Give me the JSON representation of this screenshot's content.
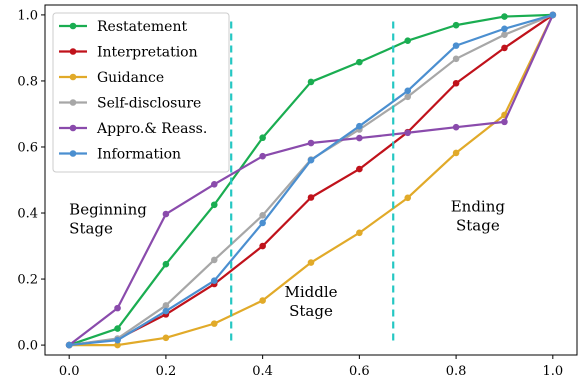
{
  "chart_data": {
    "type": "line",
    "x": [
      0.0,
      0.1,
      0.2,
      0.3,
      0.4,
      0.5,
      0.6,
      0.7,
      0.8,
      0.9,
      1.0
    ],
    "xlim": [
      -0.05,
      1.05
    ],
    "ylim": [
      -0.03,
      1.03
    ],
    "xticks": [
      0.0,
      0.2,
      0.4,
      0.6,
      0.8,
      1.0
    ],
    "yticks": [
      0.0,
      0.2,
      0.4,
      0.6,
      0.8,
      1.0
    ],
    "xtick_labels": [
      "0.0",
      "0.2",
      "0.4",
      "0.6",
      "0.8",
      "1.0"
    ],
    "ytick_labels": [
      "0.0",
      "0.2",
      "0.4",
      "0.6",
      "0.8",
      "1.0"
    ],
    "grid": false,
    "legend_position": "upper-left",
    "series": [
      {
        "name": "Restatement",
        "color": "#1aad51",
        "values": [
          0.0,
          0.05,
          0.245,
          0.425,
          0.628,
          0.797,
          0.857,
          0.922,
          0.969,
          0.995,
          1.0
        ]
      },
      {
        "name": "Interpretation",
        "color": "#c0121b",
        "values": [
          0.0,
          0.018,
          0.093,
          0.185,
          0.3,
          0.447,
          0.533,
          0.645,
          0.793,
          0.9,
          1.0
        ]
      },
      {
        "name": "Guidance",
        "color": "#e1aa29",
        "values": [
          0.0,
          0.0,
          0.022,
          0.065,
          0.135,
          0.25,
          0.34,
          0.446,
          0.582,
          0.697,
          1.0
        ]
      },
      {
        "name": "Self-disclosure",
        "color": "#a7a7a7",
        "values": [
          0.0,
          0.02,
          0.12,
          0.258,
          0.393,
          0.562,
          0.653,
          0.752,
          0.867,
          0.94,
          1.0
        ]
      },
      {
        "name": "Appro.& Reass.",
        "color": "#8a4bac",
        "values": [
          0.0,
          0.112,
          0.397,
          0.487,
          0.572,
          0.612,
          0.627,
          0.643,
          0.66,
          0.676,
          1.0
        ]
      },
      {
        "name": "Information",
        "color": "#4b8fd0",
        "values": [
          0.0,
          0.015,
          0.103,
          0.195,
          0.37,
          0.56,
          0.663,
          0.77,
          0.907,
          0.958,
          1.0
        ]
      }
    ],
    "vlines": [
      {
        "x": 0.335,
        "color": "#25c7c3"
      },
      {
        "x": 0.67,
        "color": "#25c7c3"
      }
    ],
    "annotations": [
      {
        "lines": [
          "Beginning",
          "Stage"
        ],
        "x": 0.0,
        "y": 0.395,
        "anchor": "start"
      },
      {
        "lines": [
          "Middle",
          "Stage"
        ],
        "x": 0.5,
        "y": 0.145,
        "anchor": "middle"
      },
      {
        "lines": [
          "Ending",
          "Stage"
        ],
        "x": 0.845,
        "y": 0.405,
        "anchor": "middle"
      }
    ]
  }
}
